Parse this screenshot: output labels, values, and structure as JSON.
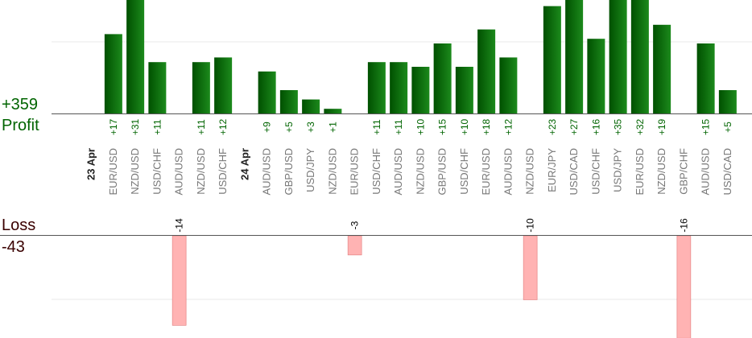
{
  "summary": {
    "profit_total": "+359",
    "profit_label": "Profit",
    "loss_label": "Loss",
    "loss_total": "-43"
  },
  "colors": {
    "profit_bar_dark": "#005000",
    "profit_bar_light": "#1c8a1c",
    "profit_text": "#006400",
    "loss_bar": "#ffb3b3",
    "loss_bar_edge": "#e07a7a",
    "loss_text": "#000000",
    "axis": "#555555",
    "grid": "#e8e8e8",
    "pair_text": "#777777",
    "date_text": "#222222"
  },
  "chart_data": {
    "type": "bar",
    "profit_axis_visible_max": 16,
    "loss_axis_visible_min": -16,
    "slots": [
      {
        "kind": "date",
        "label": "23 Apr"
      },
      {
        "kind": "trade",
        "pair": "EUR/USD",
        "value": 17
      },
      {
        "kind": "trade",
        "pair": "NZD/USD",
        "value": 31
      },
      {
        "kind": "trade",
        "pair": "USD/CHF",
        "value": 11
      },
      {
        "kind": "trade",
        "pair": "AUD/USD",
        "value": -14
      },
      {
        "kind": "trade",
        "pair": "NZD/USD",
        "value": 11
      },
      {
        "kind": "trade",
        "pair": "USD/CHF",
        "value": 12
      },
      {
        "kind": "date",
        "label": "24 Apr"
      },
      {
        "kind": "trade",
        "pair": "AUD/USD",
        "value": 9
      },
      {
        "kind": "trade",
        "pair": "GBP/USD",
        "value": 5
      },
      {
        "kind": "trade",
        "pair": "USD/JPY",
        "value": 3
      },
      {
        "kind": "trade",
        "pair": "NZD/USD",
        "value": 1
      },
      {
        "kind": "trade",
        "pair": "EUR/USD",
        "value": -3
      },
      {
        "kind": "trade",
        "pair": "USD/CHF",
        "value": 11
      },
      {
        "kind": "trade",
        "pair": "AUD/USD",
        "value": 11
      },
      {
        "kind": "trade",
        "pair": "NZD/USD",
        "value": 10
      },
      {
        "kind": "trade",
        "pair": "GBP/USD",
        "value": 15
      },
      {
        "kind": "trade",
        "pair": "USD/CHF",
        "value": 10
      },
      {
        "kind": "trade",
        "pair": "EUR/USD",
        "value": 18
      },
      {
        "kind": "trade",
        "pair": "AUD/USD",
        "value": 12
      },
      {
        "kind": "trade",
        "pair": "NZD/USD",
        "value": -10
      },
      {
        "kind": "trade",
        "pair": "EUR/JPY",
        "value": 23
      },
      {
        "kind": "trade",
        "pair": "USD/CAD",
        "value": 27
      },
      {
        "kind": "trade",
        "pair": "USD/CHF",
        "value": 16
      },
      {
        "kind": "trade",
        "pair": "USD/JPY",
        "value": 35
      },
      {
        "kind": "trade",
        "pair": "EUR/USD",
        "value": 32
      },
      {
        "kind": "trade",
        "pair": "NZD/USD",
        "value": 19
      },
      {
        "kind": "trade",
        "pair": "GBP/CHF",
        "value": -16
      },
      {
        "kind": "trade",
        "pair": "AUD/USD",
        "value": 15
      },
      {
        "kind": "trade",
        "pair": "USD/CAD",
        "value": 5
      }
    ]
  }
}
